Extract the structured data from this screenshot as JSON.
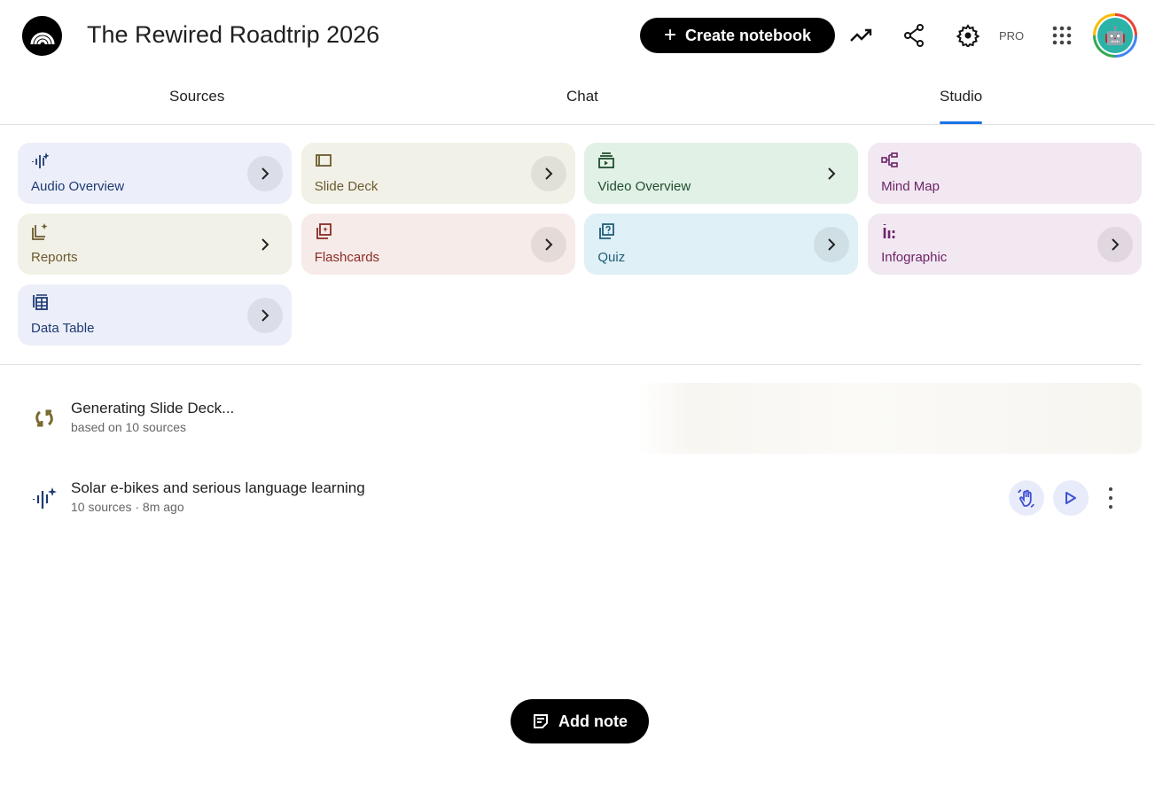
{
  "header": {
    "title": "The Rewired Roadtrip 2026",
    "create_label": "Create notebook",
    "pro_label": "PRO"
  },
  "tabs": [
    {
      "label": "Sources"
    },
    {
      "label": "Chat"
    },
    {
      "label": "Studio",
      "active": true
    }
  ],
  "studio_tools": [
    {
      "label": "Audio Overview",
      "icon": "audio-waveform-icon",
      "bg": "#eceffa",
      "color": "#1f3a73"
    },
    {
      "label": "Slide Deck",
      "icon": "slides-icon",
      "bg": "#f2f1e8",
      "color": "#6b5a2e"
    },
    {
      "label": "Video Overview",
      "icon": "video-icon",
      "bg": "#e2f1e6",
      "color": "#1f4d2c"
    },
    {
      "label": "Mind Map",
      "icon": "mind-map-icon",
      "bg": "#f1e8f2",
      "color": "#6e2467"
    },
    {
      "label": "Reports",
      "icon": "reports-icon",
      "bg": "#f2f1e8",
      "color": "#6b5a2e"
    },
    {
      "label": "Flashcards",
      "icon": "flashcards-icon",
      "bg": "#f6ebe9",
      "color": "#8a2b25"
    },
    {
      "label": "Quiz",
      "icon": "quiz-icon",
      "bg": "#dff0f6",
      "color": "#1f5e78"
    },
    {
      "label": "Infographic",
      "icon": "infographic-icon",
      "bg": "#f1e8f2",
      "color": "#6e2467"
    },
    {
      "label": "Data Table",
      "icon": "data-table-icon",
      "bg": "#eceffa",
      "color": "#1f3a73"
    }
  ],
  "outputs": [
    {
      "title": "Generating Slide Deck...",
      "subtitle": "based on 10 sources",
      "icon": "sync-icon"
    },
    {
      "title": "Solar e-bikes and serious language learning",
      "subtitle": "10 sources · 8m ago",
      "icon": "audio-waveform-icon"
    }
  ],
  "add_note_label": "Add note",
  "colors": {
    "accent": "#1a73e8",
    "action_button_bg": "#e8ebfa",
    "action_icon": "#3f51d6"
  }
}
